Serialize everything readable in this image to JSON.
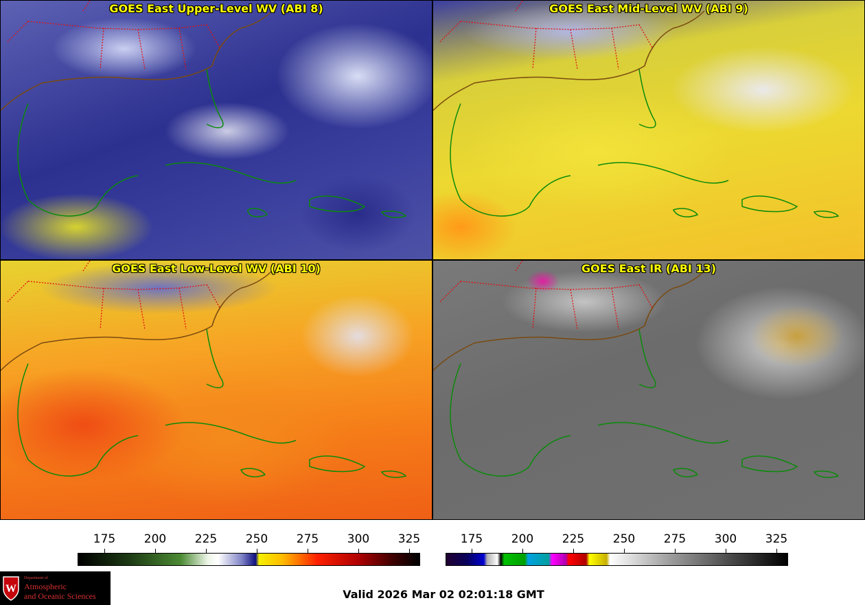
{
  "panels": [
    {
      "title": "GOES East Upper-Level WV (ABI 8)"
    },
    {
      "title": "GOES East Mid-Level WV (ABI 9)"
    },
    {
      "title": "GOES East Low-Level WV (ABI 10)"
    },
    {
      "title": "GOES East IR (ABI 13)"
    }
  ],
  "colorbars": {
    "wv": {
      "ticks": [
        "175",
        "200",
        "225",
        "250",
        "275",
        "300",
        "325"
      ]
    },
    "ir": {
      "ticks": [
        "175",
        "200",
        "225",
        "250",
        "275",
        "300",
        "325"
      ]
    }
  },
  "logo": {
    "department": "Department of",
    "line1": "Atmospheric",
    "line2": "and Oceanic Sciences",
    "shield_letter": "W"
  },
  "footer": {
    "valid": "Valid 2026 Mar 02 02:01:18 GMT"
  },
  "colors": {
    "title_text": "#ffff00",
    "coastline": "#0a8a0a",
    "state_border": "#e01010",
    "logo_red": "#d83030"
  }
}
